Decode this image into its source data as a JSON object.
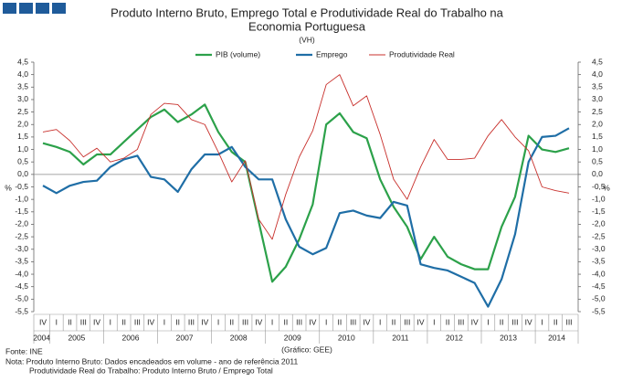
{
  "chart_data": {
    "type": "line",
    "title": [
      "Produto Interno Bruto, Emprego Total e Produtividade Real do Trabalho na",
      "Economia Portuguesa"
    ],
    "subtitle": "(VH)",
    "ylabel": "%",
    "y2label": "%",
    "categories": [
      "IV",
      "I",
      "II",
      "III",
      "IV",
      "I",
      "II",
      "III",
      "IV",
      "I",
      "II",
      "III",
      "IV",
      "I",
      "II",
      "III",
      "IV",
      "I",
      "II",
      "III",
      "IV",
      "I",
      "II",
      "III",
      "IV",
      "I",
      "II",
      "III",
      "IV",
      "I",
      "II",
      "III",
      "IV",
      "I",
      "II",
      "III",
      "IV",
      "I",
      "II",
      "III"
    ],
    "x_groups": [
      "2004",
      "2005",
      "2006",
      "2007",
      "2008",
      "2009",
      "2010",
      "2011",
      "2012",
      "2013",
      "2014"
    ],
    "series": [
      {
        "name": "PIB (volume)",
        "color": "#2ca14a",
        "width": 2.2,
        "values": [
          1.25,
          1.1,
          0.9,
          0.4,
          0.8,
          0.8,
          1.3,
          1.8,
          2.3,
          2.6,
          2.1,
          2.4,
          2.8,
          1.7,
          0.9,
          0.5,
          -1.9,
          -4.3,
          -3.7,
          -2.6,
          -1.2,
          2.0,
          2.45,
          1.7,
          1.45,
          -0.2,
          -1.3,
          -2.1,
          -3.4,
          -2.5,
          -3.3,
          -3.6,
          -3.8,
          -3.8,
          -2.1,
          -0.9,
          1.55,
          1.0,
          0.9,
          1.05
        ]
      },
      {
        "name": "Emprego",
        "color": "#1f6ea6",
        "width": 2.2,
        "values": [
          -0.45,
          -0.75,
          -0.45,
          -0.3,
          -0.25,
          0.3,
          0.6,
          0.75,
          -0.1,
          -0.2,
          -0.7,
          0.2,
          0.8,
          0.8,
          1.1,
          0.3,
          -0.2,
          -0.2,
          -1.8,
          -2.9,
          -3.2,
          -2.95,
          -1.55,
          -1.45,
          -1.65,
          -1.75,
          -1.1,
          -1.25,
          -3.6,
          -3.75,
          -3.85,
          -4.1,
          -4.35,
          -5.3,
          -4.2,
          -2.4,
          0.5,
          1.5,
          1.55,
          1.85
        ]
      },
      {
        "name": "Produtividade Real",
        "color": "#c8302c",
        "width": 0.9,
        "values": [
          1.7,
          1.8,
          1.35,
          0.7,
          1.05,
          0.5,
          0.65,
          1.0,
          2.4,
          2.85,
          2.8,
          2.2,
          2.0,
          0.9,
          -0.3,
          0.55,
          -1.8,
          -2.6,
          -0.8,
          0.7,
          1.75,
          3.6,
          4.0,
          2.75,
          3.15,
          1.6,
          -0.2,
          -1.0,
          0.3,
          1.4,
          0.6,
          0.6,
          0.65,
          1.55,
          2.2,
          1.5,
          0.95,
          -0.5,
          -0.65,
          -0.75
        ]
      }
    ],
    "ylim": [
      -5.5,
      4.5
    ],
    "yticks": [
      {
        "value": -5.5,
        "label": "-5,5"
      },
      {
        "value": -5,
        "label": "-5,0"
      },
      {
        "value": -4.5,
        "label": "-4,5"
      },
      {
        "value": -4,
        "label": "-4,0"
      },
      {
        "value": -3.5,
        "label": "-3,5"
      },
      {
        "value": -3,
        "label": "-3,0"
      },
      {
        "value": -2.5,
        "label": "-2,5"
      },
      {
        "value": -2,
        "label": "-2,0"
      },
      {
        "value": -1.5,
        "label": "-1,5"
      },
      {
        "value": -1,
        "label": "-1,0"
      },
      {
        "value": -0.5,
        "label": "-0,5"
      },
      {
        "value": 0,
        "label": "0,0"
      },
      {
        "value": 0.5,
        "label": "0,5"
      },
      {
        "value": 1,
        "label": "1,0"
      },
      {
        "value": 1.5,
        "label": "1,5"
      },
      {
        "value": 2,
        "label": "2,0"
      },
      {
        "value": 2.5,
        "label": "2,5"
      },
      {
        "value": 3,
        "label": "3,0"
      },
      {
        "value": 3.5,
        "label": "3,5"
      },
      {
        "value": 4,
        "label": "4,0"
      },
      {
        "value": 4.5,
        "label": "4,5"
      }
    ],
    "y2lim": [
      -5.5,
      4.5
    ],
    "y2ticks": [
      {
        "value": -5.5,
        "label": "-5,5"
      },
      {
        "value": -5,
        "label": "-5,0"
      },
      {
        "value": -4.5,
        "label": "-4,5"
      },
      {
        "value": -4,
        "label": "-4,0"
      },
      {
        "value": -3.5,
        "label": "-3,5"
      },
      {
        "value": -3,
        "label": "-3,0"
      },
      {
        "value": -2.5,
        "label": "-2,5"
      },
      {
        "value": -2,
        "label": "-2,0"
      },
      {
        "value": -1.5,
        "label": "-1,5"
      },
      {
        "value": -1,
        "label": "-1,0"
      },
      {
        "value": -0.5,
        "label": "-0,5"
      },
      {
        "value": 0,
        "label": "0,0"
      },
      {
        "value": 0.5,
        "label": "0,5"
      },
      {
        "value": 1,
        "label": "1,0"
      },
      {
        "value": 1.5,
        "label": "1,5"
      },
      {
        "value": 2,
        "label": "2,0"
      },
      {
        "value": 2.5,
        "label": "2,5"
      },
      {
        "value": 3,
        "label": "3,0"
      },
      {
        "value": 3.5,
        "label": "3,5"
      },
      {
        "value": 4,
        "label": "4,0"
      },
      {
        "value": 4.5,
        "label": "4,5"
      }
    ],
    "legend": "top",
    "source": "Fonte: INE",
    "credit": "(Gráfico: GEE)",
    "notes": [
      "Nota: Produto Interno Bruto: Dados encadeados em volume - ano de referência 2011",
      "Produtividade Real do Trabalho: Produto Interno Bruto / Emprego Total"
    ]
  }
}
